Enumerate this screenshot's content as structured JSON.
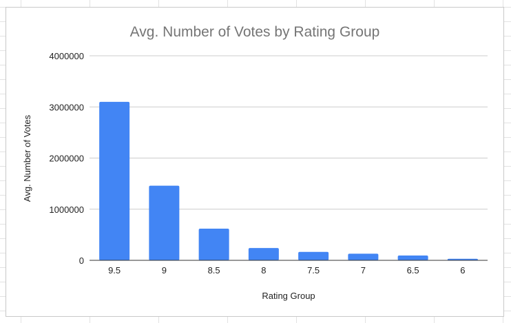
{
  "chart_data": {
    "type": "bar",
    "title": "Avg. Number of Votes by Rating Group",
    "xlabel": "Rating Group",
    "ylabel": "Avg. Number of Votes",
    "categories": [
      "9.5",
      "9",
      "8.5",
      "8",
      "7.5",
      "7",
      "6.5",
      "6"
    ],
    "series": [
      {
        "values": [
          3100000,
          1460000,
          620000,
          240000,
          165000,
          130000,
          95000,
          30000
        ]
      }
    ],
    "ylim": [
      0,
      4000000
    ],
    "yticks": [
      "0",
      "1000000",
      "2000000",
      "3000000",
      "4000000"
    ],
    "grid": true,
    "legend": "none",
    "colors": {
      "bar": "#4285f4",
      "grid": "#cccccc",
      "axis": "#333333",
      "title": "#757575"
    }
  }
}
